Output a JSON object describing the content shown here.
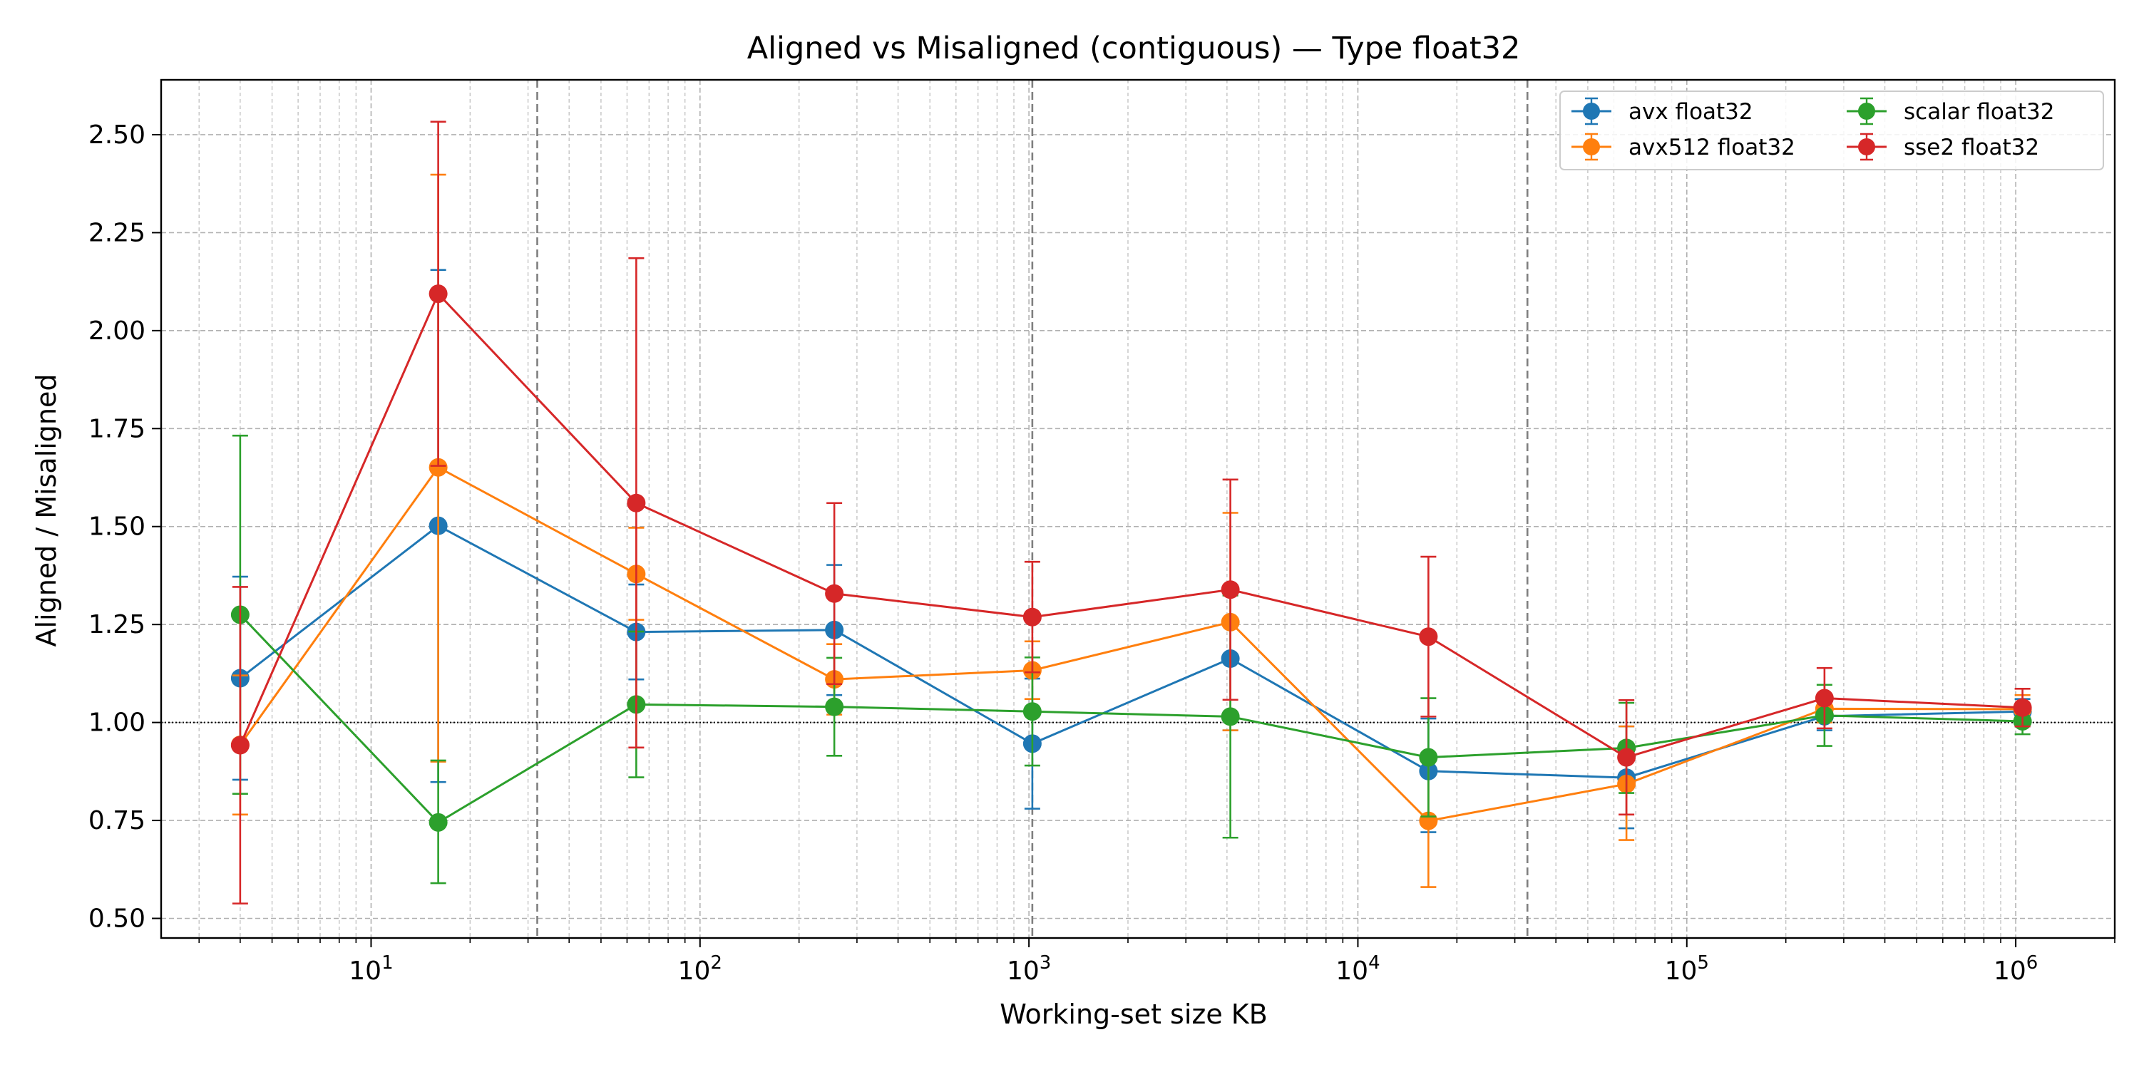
{
  "chart_data": {
    "type": "line",
    "title": "Aligned vs Misaligned (contiguous) — Type float32",
    "xlabel": "Working-set size KB",
    "ylabel": "Aligned / Misaligned",
    "x_scale": "log",
    "xlim": [
      2.3,
      2000000
    ],
    "ylim": [
      0.45,
      2.64
    ],
    "yticks": [
      0.5,
      0.75,
      1.0,
      1.25,
      1.5,
      1.75,
      2.0,
      2.25,
      2.5
    ],
    "ytick_labels": [
      "0.50",
      "0.75",
      "1.00",
      "1.25",
      "1.50",
      "1.75",
      "2.00",
      "2.25",
      "2.50"
    ],
    "xticks": [
      {
        "base": "10",
        "exp": "1",
        "value": 10
      },
      {
        "base": "10",
        "exp": "2",
        "value": 100
      },
      {
        "base": "10",
        "exp": "3",
        "value": 1000
      },
      {
        "base": "10",
        "exp": "4",
        "value": 10000
      },
      {
        "base": "10",
        "exp": "5",
        "value": 100000
      },
      {
        "base": "10",
        "exp": "6",
        "value": 1000000
      }
    ],
    "grid": true,
    "reference_line_y": 1.0,
    "vertical_markers_x": [
      32,
      1024,
      32768
    ],
    "legend_position": "top-right",
    "x": [
      4,
      16,
      64,
      256,
      1024,
      4096,
      16384,
      65536,
      262144,
      1048576
    ],
    "series": [
      {
        "name": "avx float32",
        "color": "#1f77b4",
        "values": [
          1.113,
          1.502,
          1.231,
          1.236,
          0.946,
          1.163,
          0.876,
          0.859,
          1.016,
          1.028
        ],
        "err_low": [
          0.854,
          0.848,
          1.11,
          1.07,
          0.78,
          0.98,
          0.72,
          0.73,
          0.98,
          0.99
        ],
        "err_high": [
          1.372,
          2.155,
          1.352,
          1.402,
          1.112,
          1.346,
          1.01,
          0.99,
          1.06,
          1.06
        ]
      },
      {
        "name": "avx512 float32",
        "color": "#ff7f0e",
        "values": [
          0.943,
          1.651,
          1.379,
          1.11,
          1.133,
          1.256,
          0.749,
          0.843,
          1.035,
          1.034
        ],
        "err_low": [
          0.765,
          0.9,
          1.262,
          1.02,
          1.06,
          0.98,
          0.58,
          0.7,
          1.0,
          1.0
        ],
        "err_high": [
          1.12,
          2.398,
          1.497,
          1.2,
          1.207,
          1.535,
          0.92,
          0.99,
          1.07,
          1.07
        ]
      },
      {
        "name": "scalar float32",
        "color": "#2ca02c",
        "values": [
          1.275,
          0.745,
          1.046,
          1.04,
          1.028,
          1.015,
          0.911,
          0.935,
          1.018,
          1.003
        ],
        "err_low": [
          0.818,
          0.59,
          0.86,
          0.915,
          0.89,
          0.706,
          0.76,
          0.82,
          0.94,
          0.97
        ],
        "err_high": [
          1.732,
          0.903,
          1.232,
          1.165,
          1.166,
          1.324,
          1.062,
          1.05,
          1.096,
          1.036
        ]
      },
      {
        "name": "sse2 float32",
        "color": "#d62728",
        "values": [
          0.942,
          2.094,
          1.56,
          1.329,
          1.269,
          1.339,
          1.219,
          0.911,
          1.062,
          1.038
        ],
        "err_low": [
          0.538,
          1.655,
          0.936,
          1.098,
          1.128,
          1.058,
          1.015,
          0.765,
          0.985,
          0.99
        ],
        "err_high": [
          1.346,
          2.533,
          2.185,
          1.56,
          1.41,
          1.62,
          1.423,
          1.057,
          1.139,
          1.086
        ]
      }
    ]
  }
}
